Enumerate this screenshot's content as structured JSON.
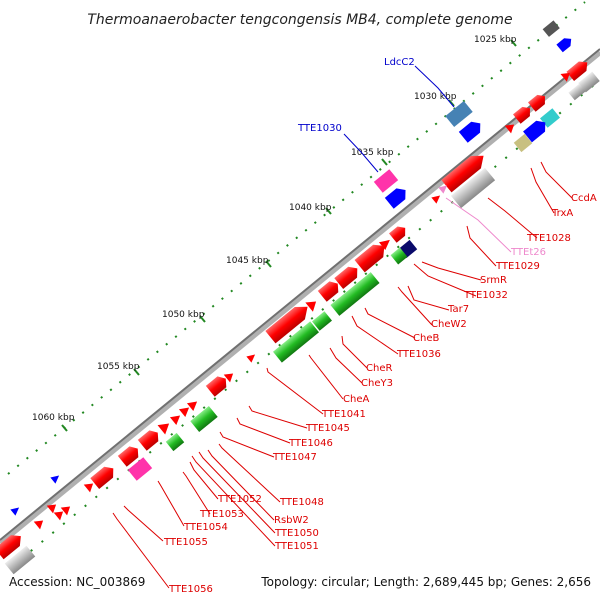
{
  "title": "Thermoanaerobacter tengcongensis MB4, complete genome",
  "footer": {
    "accession": "Accession: NC_003869",
    "topology": "Topology: circular; Length: 2,689,445 bp; Genes: 2,656"
  },
  "ticks": [
    "1025 kbp",
    "1030 kbp",
    "1035 kbp",
    "1040 kbp",
    "1045 kbp",
    "1050 kbp",
    "1055 kbp",
    "1060 kbp"
  ],
  "gene_labels": {
    "ldcc2": "LdcC2",
    "tte1030": "TTE1030",
    "ccda": "CcdA",
    "trxa": "TrxA",
    "tte1028": "TTE1028",
    "ttet26": "TTEt26",
    "tte1029": "TTE1029",
    "srmr": "SrmR",
    "tte1032": "TTE1032",
    "tar7": "Tar7",
    "chew2": "CheW2",
    "cheb": "CheB",
    "tte1036": "TTE1036",
    "cher": "CheR",
    "chey3": "CheY3",
    "chea": "CheA",
    "tte1041": "TTE1041",
    "tte1045": "TTE1045",
    "tte1046": "TTE1046",
    "tte1047": "TTE1047",
    "tte1048": "TTE1048",
    "tte1052": "TTE1052",
    "tte1053": "TTE1053",
    "rsbw2": "RsbW2",
    "tte1054": "TTE1054",
    "tte1050": "TTE1050",
    "tte1051": "TTE1051",
    "tte1055": "TTE1055",
    "tte1056": "TTE1056"
  },
  "colors": {
    "backbone": "#808080",
    "forward_gene": "#ff0000",
    "blue_gene": "#0000ff",
    "green_gene": "#33cc33",
    "magenta_gene": "#ff33aa",
    "gray_gene": "#c0c0c0",
    "steel_gene": "#4682b4",
    "cyan_gene": "#33cccc",
    "olive_gene": "#c8c080",
    "label_red": "#dd0000",
    "label_blue": "#0000cc",
    "label_pink": "#ee88cc",
    "tick_green": "#228822"
  }
}
